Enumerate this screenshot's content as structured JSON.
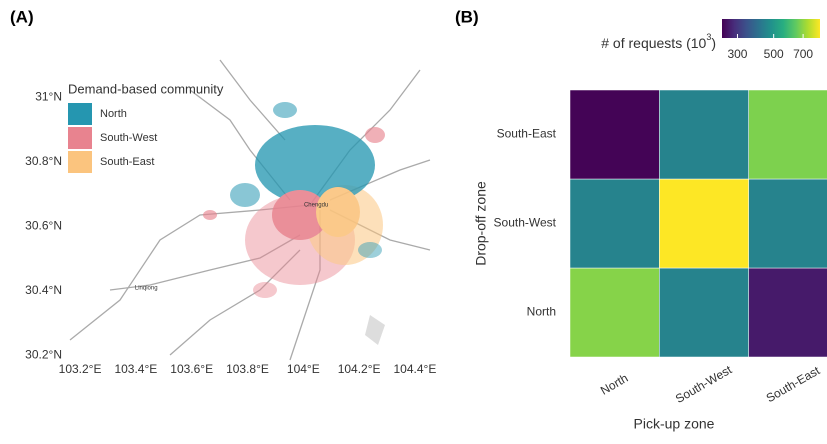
{
  "chart_data": [
    {
      "type": "map",
      "panel_label": "(A)",
      "legend_title": "Demand-based community",
      "series": [
        {
          "name": "North",
          "color": "#2596b0"
        },
        {
          "name": "South-West",
          "color": "#e8838f"
        },
        {
          "name": "South-East",
          "color": "#fbc47e"
        }
      ],
      "places": [
        {
          "name": "Chengdu",
          "lon": 104.046,
          "lat": 30.665
        },
        {
          "name": "Linqiong",
          "lon": 103.437,
          "lat": 30.408
        }
      ],
      "xlim": [
        103.146,
        104.454
      ],
      "ylim": [
        30.185,
        31.115
      ],
      "xticks": [
        {
          "value": 103.2,
          "label": "103.2°E"
        },
        {
          "value": 103.4,
          "label": "103.4°E"
        },
        {
          "value": 103.6,
          "label": "103.6°E"
        },
        {
          "value": 103.8,
          "label": "103.8°E"
        },
        {
          "value": 104.0,
          "label": "104°E"
        },
        {
          "value": 104.2,
          "label": "104.2°E"
        },
        {
          "value": 104.4,
          "label": "104.4°E"
        }
      ],
      "yticks": [
        {
          "value": 30.2,
          "label": "30.2°N"
        },
        {
          "value": 30.4,
          "label": "30.4°N"
        },
        {
          "value": 30.6,
          "label": "30.6°N"
        },
        {
          "value": 30.8,
          "label": "30.8°N"
        },
        {
          "value": 31.0,
          "label": "31°N"
        }
      ]
    },
    {
      "type": "heatmap",
      "panel_label": "(B)",
      "x_label": "Pick-up zone",
      "y_label": "Drop-off zone",
      "x_categories": [
        "North",
        "South-West",
        "South-East"
      ],
      "y_categories": [
        "North",
        "South-West",
        "South-East"
      ],
      "values": [
        [
          690,
          450,
          260
        ],
        [
          450,
          830,
          450
        ],
        [
          233,
          450,
          680
        ]
      ],
      "legend_title": [
        "# of requests (10",
        "3",
        ")"
      ],
      "scale": "sqrt",
      "clim": [
        230,
        830
      ],
      "cticks": [
        300,
        500,
        700
      ],
      "colors": [
        "#440154",
        "#472d7b",
        "#3b528b",
        "#2c728e",
        "#21918c",
        "#28ae80",
        "#5ec962",
        "#addc30",
        "#fde725"
      ]
    }
  ]
}
